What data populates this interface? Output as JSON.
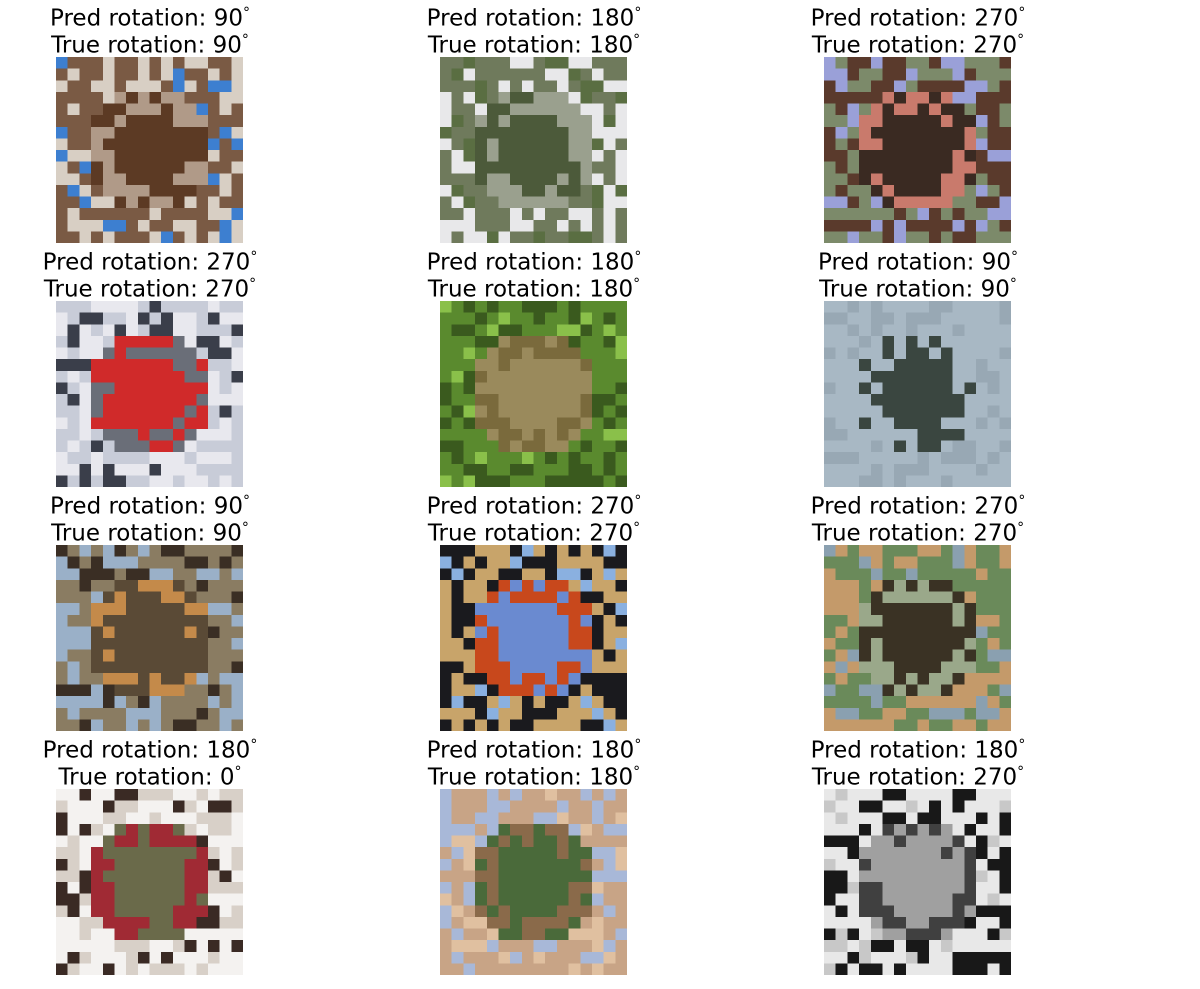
{
  "figure": {
    "degree_symbol": "°",
    "panels": [
      {
        "pred_label": "Pred rotation: 90",
        "true_label": "True rotation: 90",
        "pred": 90,
        "true": 90,
        "icon": "cat-photo",
        "colors": [
          "#7a5a44",
          "#b09a88",
          "#5c3a24",
          "#d8cfc4",
          "#3d7fd0"
        ]
      },
      {
        "pred_label": "Pred rotation: 180",
        "true_label": "True rotation: 180",
        "pred": 180,
        "true": 180,
        "icon": "bird-photo",
        "colors": [
          "#6f7a5c",
          "#9aa08e",
          "#4c5a3a",
          "#e8e8ea",
          "#5a6e42"
        ]
      },
      {
        "pred_label": "Pred rotation: 270",
        "true_label": "True rotation: 270",
        "pred": 270,
        "true": 270,
        "icon": "dog-photo",
        "colors": [
          "#5a3a2c",
          "#c97a6c",
          "#3a2a22",
          "#7c8a6a",
          "#9aa0d8"
        ]
      },
      {
        "pred_label": "Pred rotation: 270",
        "true_label": "True rotation: 270",
        "pred": 270,
        "true": 270,
        "icon": "ship-photo",
        "colors": [
          "#c8ccd8",
          "#6a6e78",
          "#d02a2a",
          "#e8e8ee",
          "#3a3e4a"
        ]
      },
      {
        "pred_label": "Pred rotation: 180",
        "true_label": "True rotation: 180",
        "pred": 180,
        "true": 180,
        "icon": "frog-photo",
        "colors": [
          "#5a8a2e",
          "#7a6a3c",
          "#9a8a5c",
          "#3a5a1e",
          "#8ac04a"
        ]
      },
      {
        "pred_label": "Pred rotation: 90",
        "true_label": "True rotation: 90",
        "pred": 90,
        "true": 90,
        "icon": "airplane-photo",
        "colors": [
          "#a8b8c4",
          "#a8b8c4",
          "#3a4640",
          "#98a8b4",
          "#a8b8c4"
        ]
      },
      {
        "pred_label": "Pred rotation: 90",
        "true_label": "True rotation: 90",
        "pred": 90,
        "true": 90,
        "icon": "horse-photo",
        "colors": [
          "#8a7c62",
          "#c48a4a",
          "#5a4a36",
          "#9ab0c8",
          "#3a2e24"
        ]
      },
      {
        "pred_label": "Pred rotation: 270",
        "true_label": "True rotation: 270",
        "pred": 270,
        "true": 270,
        "icon": "deer-photo",
        "colors": [
          "#1a1a1e",
          "#c8481c",
          "#6a8ad0",
          "#c8a46a",
          "#8ab0e0"
        ]
      },
      {
        "pred_label": "Pred rotation: 270",
        "true_label": "True rotation: 270",
        "pred": 270,
        "true": 270,
        "icon": "animal-photo",
        "colors": [
          "#6a8a5a",
          "#9aa88a",
          "#3a3224",
          "#c49a6a",
          "#8aa0b0"
        ]
      },
      {
        "pred_label": "Pred rotation: 180",
        "true_label": "True rotation: 0",
        "pred": 180,
        "true": 0,
        "icon": "truck-photo",
        "colors": [
          "#f4f2f0",
          "#a02a34",
          "#6a6a4a",
          "#d8d0c8",
          "#3a2a24"
        ]
      },
      {
        "pred_label": "Pred rotation: 180",
        "true_label": "True rotation: 180",
        "pred": 180,
        "true": 180,
        "icon": "horse-photo",
        "colors": [
          "#c8a486",
          "#8a6a4a",
          "#4a6a3a",
          "#a8b8d8",
          "#e0c0a0"
        ]
      },
      {
        "pred_label": "Pred rotation: 180",
        "true_label": "True rotation: 270",
        "pred": 180,
        "true": 270,
        "icon": "grayscale-photo",
        "colors": [
          "#e8e8e8",
          "#404040",
          "#a0a0a0",
          "#181818",
          "#c8c8c8"
        ]
      }
    ]
  }
}
